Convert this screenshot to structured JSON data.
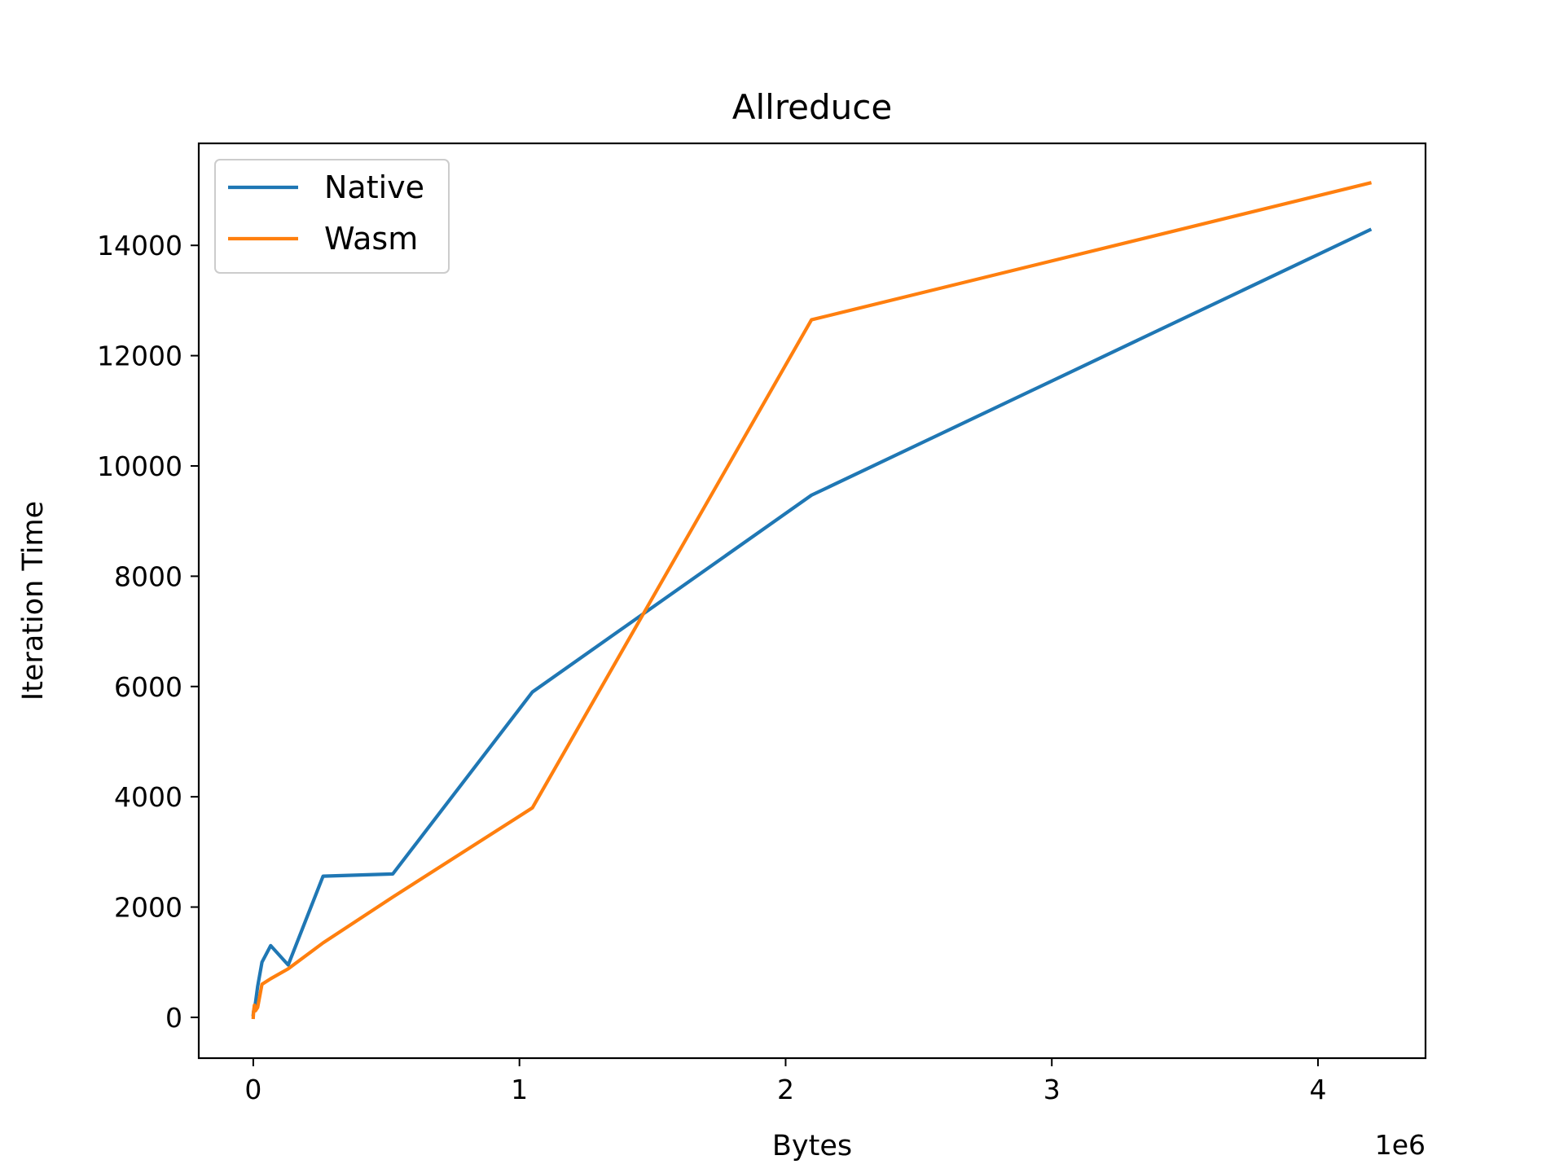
{
  "chart_data": {
    "type": "line",
    "title": "Allreduce",
    "xlabel": "Bytes",
    "ylabel": "Iteration Time",
    "x_offset_text": "1e6",
    "xlim": [
      -204800,
      4404019
    ],
    "ylim": [
      -740,
      15850
    ],
    "xticks": [
      0,
      1000000,
      2000000,
      3000000,
      4000000
    ],
    "xtick_labels": [
      "0",
      "1",
      "2",
      "3",
      "4"
    ],
    "yticks": [
      0,
      2000,
      4000,
      6000,
      8000,
      10000,
      12000,
      14000
    ],
    "ytick_labels": [
      "0",
      "2000",
      "4000",
      "6000",
      "8000",
      "10000",
      "12000",
      "14000"
    ],
    "grid": false,
    "legend_position": "upper-left",
    "series": [
      {
        "name": "Native",
        "color": "#1f77b4",
        "x": [
          0,
          1024,
          4096,
          8192,
          16384,
          32768,
          65536,
          131072,
          262144,
          524288,
          1048576,
          2097152,
          4194304
        ],
        "y": [
          50,
          110,
          180,
          260,
          560,
          1000,
          1300,
          950,
          2560,
          2600,
          5900,
          9470,
          14280
        ]
      },
      {
        "name": "Wasm",
        "color": "#ff7f0e",
        "x": [
          0,
          1024,
          4096,
          8192,
          16384,
          32768,
          65536,
          131072,
          262144,
          524288,
          1048576,
          2097152,
          4194304
        ],
        "y": [
          0,
          100,
          220,
          120,
          180,
          600,
          700,
          880,
          1350,
          2180,
          3800,
          12650,
          15130
        ]
      }
    ]
  }
}
